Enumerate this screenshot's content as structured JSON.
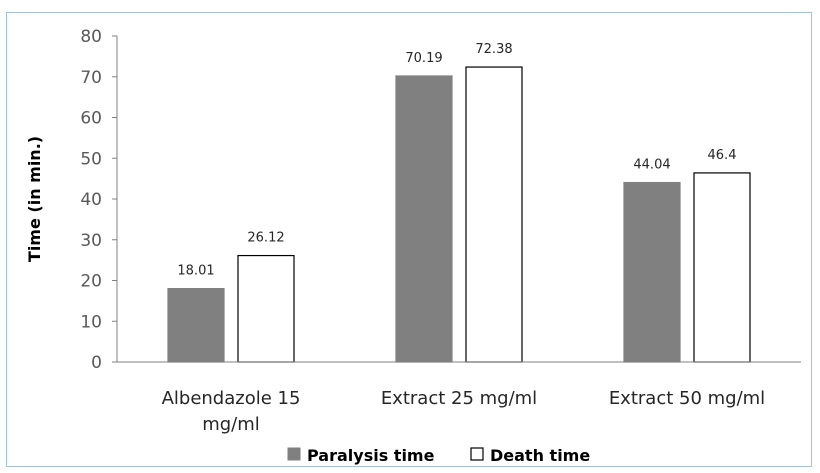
{
  "chart_data": {
    "type": "bar",
    "categories": [
      "Albendazole 15 mg/ml",
      "Extract 25 mg/ml",
      "Extract 50 mg/ml"
    ],
    "category_lines": [
      [
        "Albendazole 15",
        "mg/ml"
      ],
      [
        "Extract 25 mg/ml"
      ],
      [
        "Extract 50 mg/ml"
      ]
    ],
    "series": [
      {
        "name": "Paralysis time",
        "values": [
          18.01,
          70.19,
          44.04
        ],
        "labels": [
          "18.01",
          "70.19",
          "44.04"
        ],
        "color": "#808080",
        "stroke": "#808080"
      },
      {
        "name": "Death time",
        "values": [
          26.12,
          72.38,
          46.4
        ],
        "labels": [
          "26.12",
          "72.38",
          "46.4"
        ],
        "color": "#ffffff",
        "stroke": "#000000"
      }
    ],
    "ylabel": "Time (in min.)",
    "ylim": [
      0,
      80
    ],
    "yticks": [
      0,
      10,
      20,
      30,
      40,
      50,
      60,
      70,
      80
    ],
    "grid": false,
    "legend_position": "bottom"
  }
}
